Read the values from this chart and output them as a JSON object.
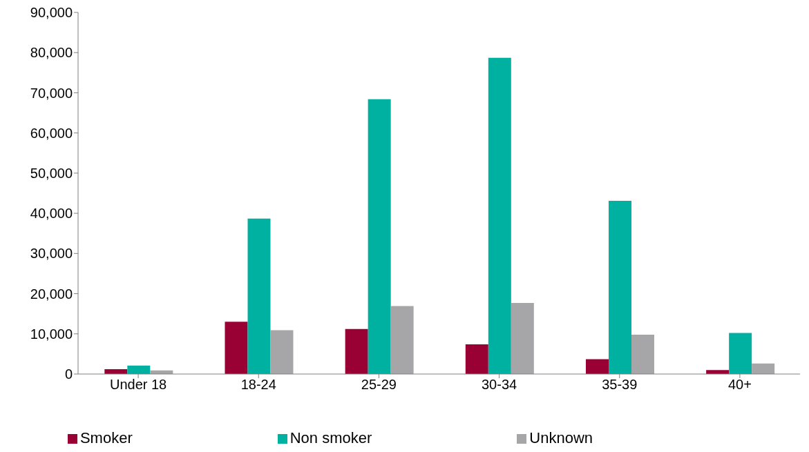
{
  "chart_data": {
    "type": "bar",
    "categories": [
      "Under 18",
      "18-24",
      "25-29",
      "30-34",
      "35-39",
      "40+"
    ],
    "series": [
      {
        "name": "Smoker",
        "color": "#990033",
        "values": [
          1200,
          13000,
          11200,
          7400,
          3700,
          1000
        ]
      },
      {
        "name": "Non smoker",
        "color": "#00b0a0",
        "values": [
          2100,
          38700,
          68400,
          78700,
          43100,
          10200
        ]
      },
      {
        "name": "Unknown",
        "color": "#a6a6a9",
        "values": [
          900,
          10900,
          16900,
          17700,
          9800,
          2600
        ]
      }
    ],
    "ylim": [
      0,
      90000
    ],
    "yticks": [
      {
        "value": 0,
        "label": "0"
      },
      {
        "value": 10000,
        "label": "10,000"
      },
      {
        "value": 20000,
        "label": "20,000"
      },
      {
        "value": 30000,
        "label": "30,000"
      },
      {
        "value": 40000,
        "label": "40,000"
      },
      {
        "value": 50000,
        "label": "50,000"
      },
      {
        "value": 60000,
        "label": "60,000"
      },
      {
        "value": 70000,
        "label": "70,000"
      },
      {
        "value": 80000,
        "label": "80,000"
      },
      {
        "value": 90000,
        "label": "90,000"
      }
    ],
    "grid": false,
    "legend": "bottom"
  }
}
